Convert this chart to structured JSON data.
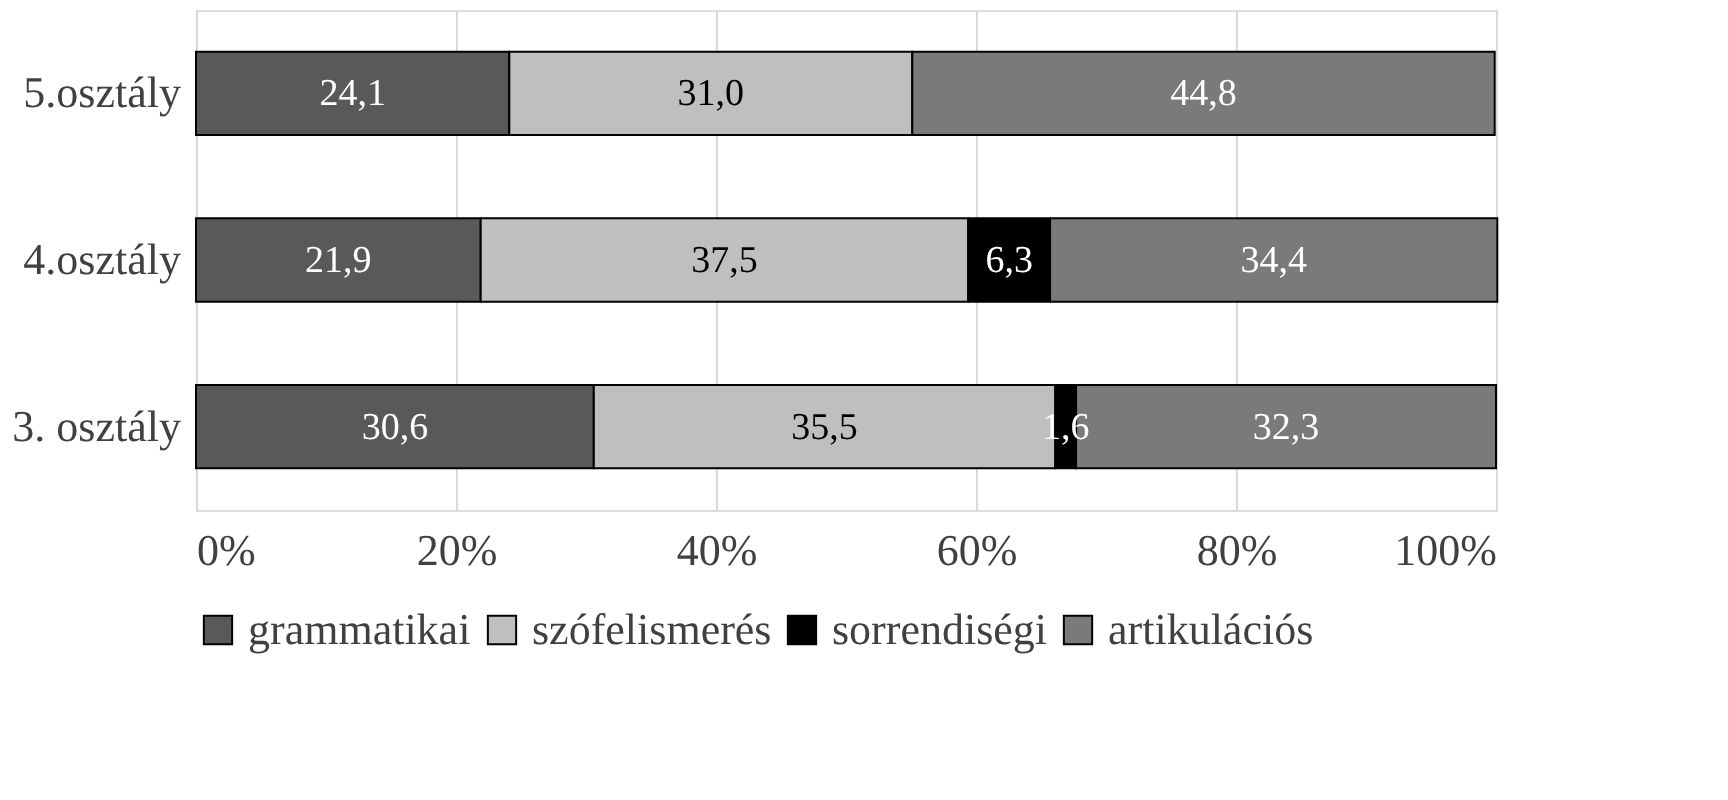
{
  "chart_data": {
    "type": "bar",
    "orientation": "horizontal",
    "stacked": true,
    "categories": [
      "5.osztály",
      "4.osztály",
      "3. osztály"
    ],
    "series": [
      {
        "name": "grammatikai",
        "color": "#595959",
        "values": [
          24.1,
          21.9,
          30.6
        ],
        "value_labels": [
          "24,1",
          "21,9",
          "30,6"
        ]
      },
      {
        "name": "szófelismerés",
        "color": "#bfbfbf",
        "values": [
          31.0,
          37.5,
          35.5
        ],
        "value_labels": [
          "31,0",
          "37,5",
          "35,5"
        ]
      },
      {
        "name": "sorrendiségi",
        "color": "#000000",
        "values": [
          null,
          6.3,
          1.6
        ],
        "value_labels": [
          null,
          "6,3",
          "1,6"
        ]
      },
      {
        "name": "artikulációs",
        "color": "#7a7a7a",
        "values": [
          44.8,
          34.4,
          32.3
        ],
        "value_labels": [
          "44,8",
          "34,4",
          "32,3"
        ]
      }
    ],
    "xlim": [
      0,
      100
    ],
    "xticks": [
      {
        "value": 0,
        "label": "0%"
      },
      {
        "value": 20,
        "label": "20%"
      },
      {
        "value": 40,
        "label": "40%"
      },
      {
        "value": 60,
        "label": "60%"
      },
      {
        "value": 80,
        "label": "80%"
      },
      {
        "value": 100,
        "label": "100%"
      }
    ],
    "grid": "x",
    "legend": "bottom"
  }
}
